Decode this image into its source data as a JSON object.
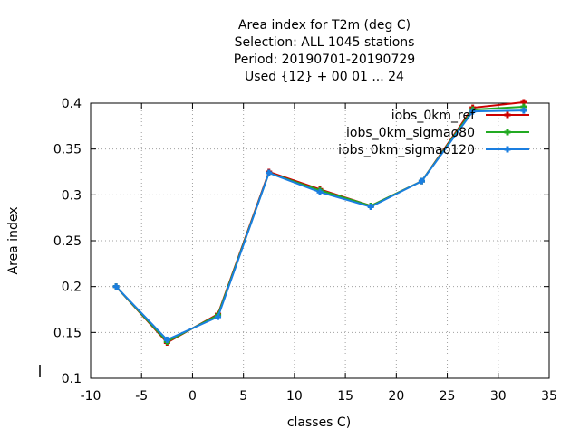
{
  "chart_data": {
    "type": "line",
    "title_lines": [
      "Area index  for T2m (deg C)",
      "Selection: ALL   1045 stations",
      "Period: 20190701-20190729",
      "Used {12} + 00 01 ... 24"
    ],
    "xlabel": "classes C)",
    "ylabel": "Area index",
    "xlim": [
      -10,
      35
    ],
    "ylim": [
      0.1,
      0.4
    ],
    "xticks": [
      -10,
      -5,
      0,
      5,
      10,
      15,
      20,
      25,
      30,
      35
    ],
    "yticks": [
      0.1,
      0.15,
      0.2,
      0.25,
      0.3,
      0.35,
      0.4
    ],
    "grid": true,
    "legend_position": "top-right",
    "x": [
      -7.5,
      -2.5,
      2.5,
      7.5,
      12.5,
      17.5,
      22.5,
      27.5,
      32.5
    ],
    "series": [
      {
        "name": "iobs_0km_ref",
        "color": "#cc0000",
        "values": [
          0.2,
          0.139,
          0.17,
          0.325,
          0.306,
          0.288,
          0.315,
          0.395,
          0.401
        ]
      },
      {
        "name": "iobs_0km_sigmao80",
        "color": "#22aa22",
        "values": [
          0.2,
          0.14,
          0.169,
          0.324,
          0.305,
          0.288,
          0.315,
          0.393,
          0.396
        ]
      },
      {
        "name": "iobs_0km_sigmao120",
        "color": "#1a7ee0",
        "values": [
          0.2,
          0.142,
          0.167,
          0.324,
          0.303,
          0.287,
          0.315,
          0.391,
          0.392
        ]
      }
    ]
  }
}
